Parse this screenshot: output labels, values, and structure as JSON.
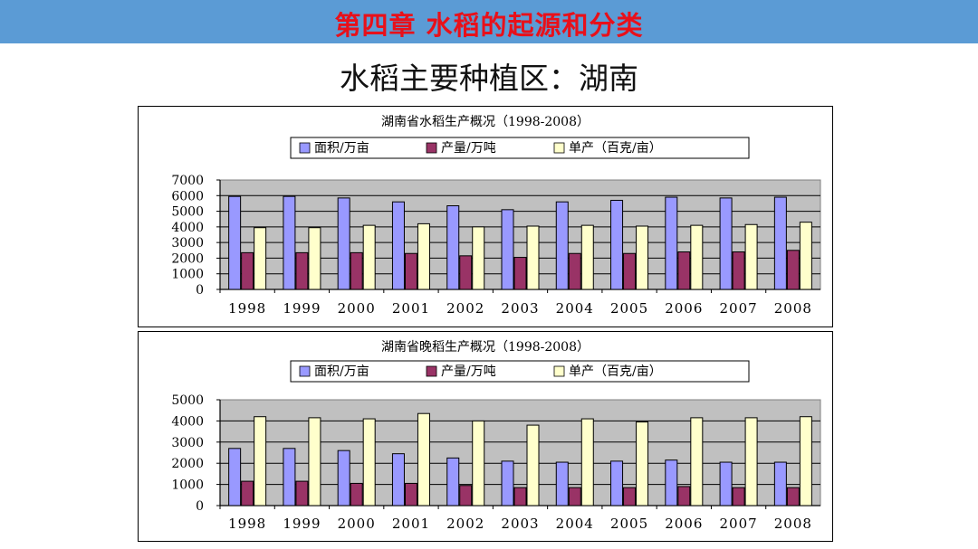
{
  "header": {
    "title": "第四章  水稻的起源和分类"
  },
  "slide": {
    "subtitle": "水稻主要种植区：湖南"
  },
  "colors": {
    "banner": "#5b9bd5",
    "banner_text": "#e8101a",
    "area": "#9999ff",
    "yield": "#993366",
    "unit": "#ffffcc",
    "plot_bg": "#c0c0c0"
  },
  "chart_data": [
    {
      "type": "bar",
      "title": "湖南省水稻生产概况（1998-2008）",
      "categories": [
        "1998",
        "1999",
        "2000",
        "2001",
        "2002",
        "2003",
        "2004",
        "2005",
        "2006",
        "2007",
        "2008"
      ],
      "series": [
        {
          "name": "面积/万亩",
          "color": "#9999ff",
          "values": [
            5950,
            5950,
            5850,
            5600,
            5350,
            5100,
            5600,
            5700,
            5900,
            5850,
            5900
          ]
        },
        {
          "name": "产量/万吨",
          "color": "#993366",
          "values": [
            2350,
            2350,
            2350,
            2300,
            2150,
            2050,
            2300,
            2300,
            2400,
            2400,
            2500
          ]
        },
        {
          "name": "单产（百克/亩）",
          "color": "#ffffcc",
          "values": [
            3950,
            3950,
            4100,
            4200,
            4000,
            4050,
            4100,
            4050,
            4100,
            4150,
            4300
          ]
        }
      ],
      "ylim": [
        0,
        7000
      ],
      "yticks": [
        0,
        1000,
        2000,
        3000,
        4000,
        5000,
        6000,
        7000
      ],
      "grid": true,
      "legend": "top"
    },
    {
      "type": "bar",
      "title": "湖南省晚稻生产概况（1998-2008）",
      "categories": [
        "1998",
        "1999",
        "2000",
        "2001",
        "2002",
        "2003",
        "2004",
        "2005",
        "2006",
        "2007",
        "2008"
      ],
      "series": [
        {
          "name": "面积/万亩",
          "color": "#9999ff",
          "values": [
            2700,
            2700,
            2600,
            2450,
            2250,
            2100,
            2050,
            2100,
            2150,
            2050,
            2050
          ]
        },
        {
          "name": "产量/万吨",
          "color": "#993366",
          "values": [
            1150,
            1150,
            1050,
            1050,
            950,
            850,
            850,
            850,
            900,
            850,
            850
          ]
        },
        {
          "name": "单产（百克/亩）",
          "color": "#ffffcc",
          "values": [
            4200,
            4150,
            4100,
            4350,
            4000,
            3800,
            4100,
            3950,
            4150,
            4150,
            4200
          ]
        }
      ],
      "ylim": [
        0,
        5000
      ],
      "yticks": [
        0,
        1000,
        2000,
        3000,
        4000,
        5000
      ],
      "grid": true,
      "legend": "top"
    }
  ]
}
